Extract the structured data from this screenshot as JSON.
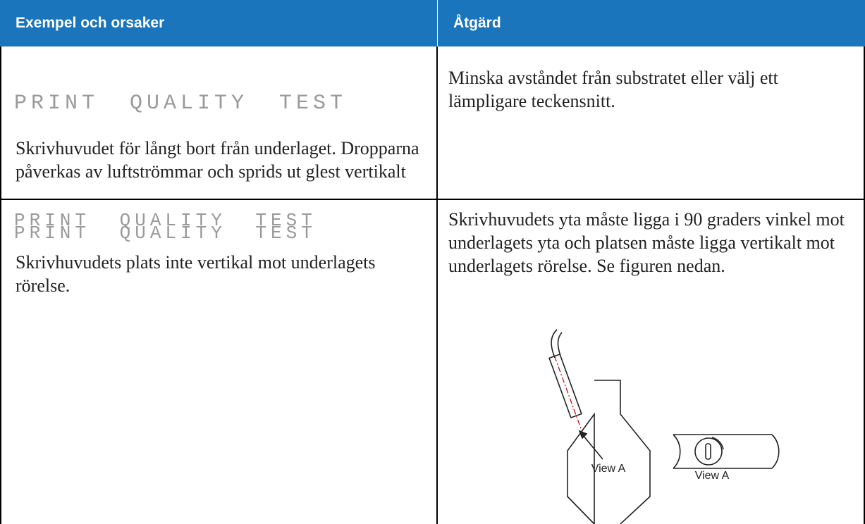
{
  "table": {
    "headers": [
      "Exempel och orsaker",
      "Åtgärd"
    ],
    "rows": [
      {
        "sample": "PRINT QUALITY TEST",
        "cause": "Skrivhuvudet för långt bort från underlaget. Dropparna påverkas av luftströmmar och sprids ut glest vertikalt",
        "action": "Minska avståndet från substratet eller välj ett lämpligare teckensnitt."
      },
      {
        "sample": "PRINT QUALITY TEST",
        "cause": "Skrivhuvudets plats inte vertikal mot underlagets rörelse.",
        "action": "Skrivhuvudets yta måste ligga i 90 graders vinkel mot underlagets yta och platsen måste ligga vertikalt mot underlagets rörelse. Se figuren nedan.",
        "figure_labels": [
          "View A",
          "View A"
        ]
      }
    ]
  }
}
